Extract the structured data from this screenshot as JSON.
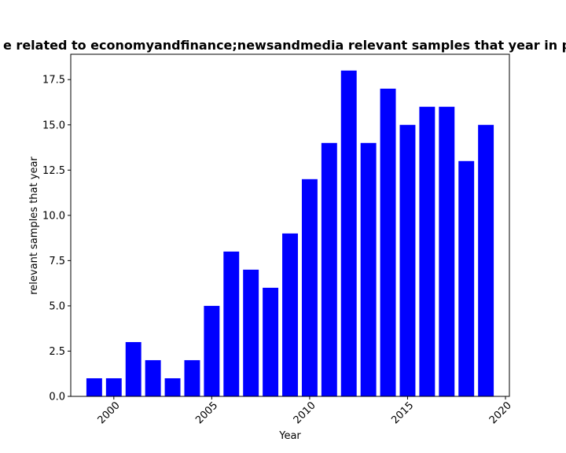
{
  "chart_data": {
    "type": "bar",
    "title": "e related to economyandfinance;newsandmedia relevant samples that year in pr",
    "xlabel": "Year",
    "ylabel": "relevant samples that year",
    "x": [
      1999,
      2000,
      2001,
      2002,
      2003,
      2004,
      2005,
      2006,
      2007,
      2008,
      2009,
      2010,
      2011,
      2012,
      2013,
      2014,
      2015,
      2016,
      2017,
      2018,
      2019
    ],
    "values": [
      1,
      1,
      3,
      2,
      1,
      2,
      5,
      8,
      7,
      6,
      9,
      12,
      14,
      18,
      14,
      17,
      15,
      16,
      16,
      13,
      15
    ],
    "xlim": [
      1997.8,
      2020.2
    ],
    "ylim": [
      0,
      18.9
    ],
    "xticks": [
      "2000",
      "2005",
      "2010",
      "2015",
      "2020"
    ],
    "yticks": [
      "0.0",
      "2.5",
      "5.0",
      "7.5",
      "10.0",
      "12.5",
      "15.0",
      "17.5"
    ],
    "bar_color": "#0000ff",
    "grid": false,
    "legend": "none"
  }
}
